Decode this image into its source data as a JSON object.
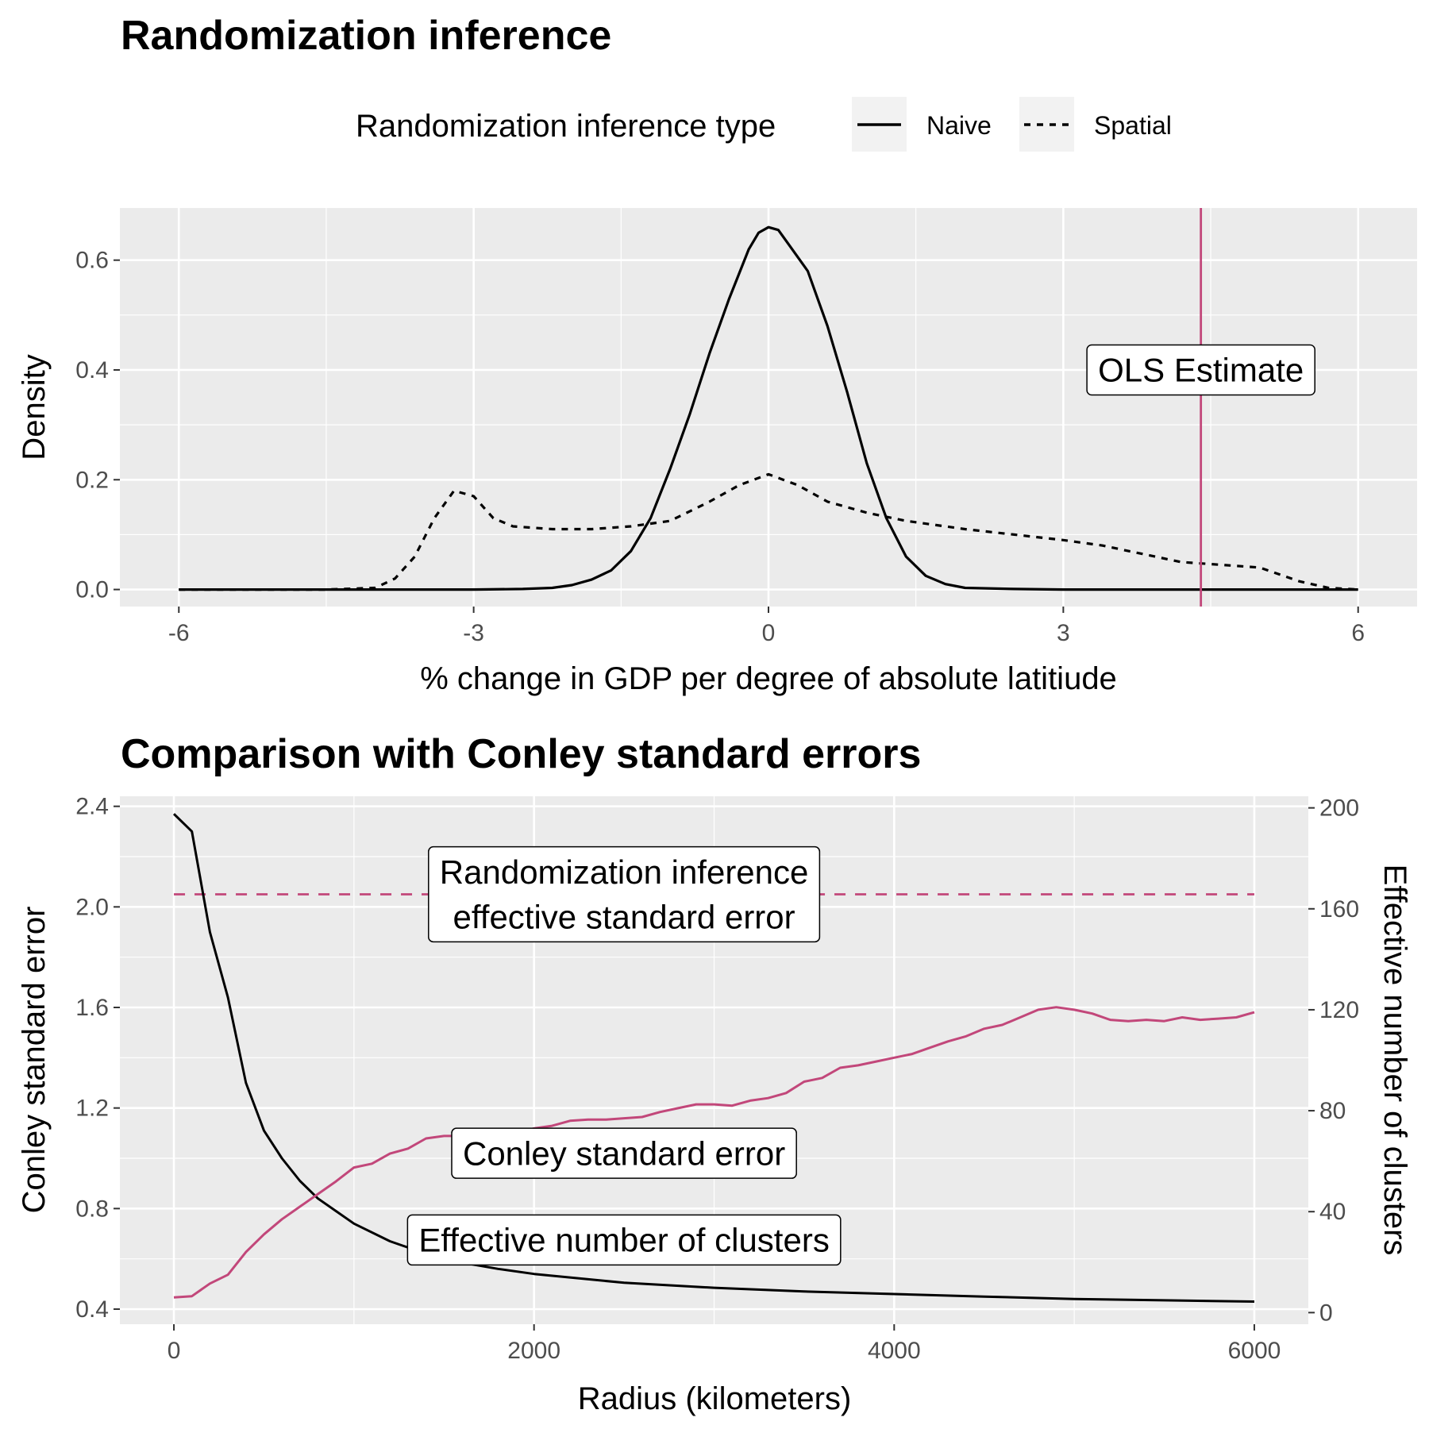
{
  "chart_data": [
    {
      "type": "line",
      "title": "Randomization inference",
      "xlabel": "% change in GDP per degree of absolute latitiude",
      "ylabel": "Density",
      "xlim": [
        -6.6,
        6.6
      ],
      "ylim": [
        -0.031,
        0.695
      ],
      "xticks": [
        -6,
        -3,
        0,
        3,
        6
      ],
      "xtick_labels": [
        "-6",
        "-3",
        "0",
        "3",
        "6"
      ],
      "yticks": [
        0.0,
        0.2,
        0.4,
        0.6
      ],
      "ytick_labels": [
        "0.0",
        "0.2",
        "0.4",
        "0.6"
      ],
      "grid": true,
      "legend": {
        "position": "top",
        "title": "Randomization inference type",
        "entries": [
          "Naive",
          "Spatial"
        ]
      },
      "series": [
        {
          "name": "Naive",
          "style": "solid",
          "color": "#000000",
          "x": [
            -6,
            -4,
            -3,
            -2.5,
            -2.2,
            -2,
            -1.8,
            -1.6,
            -1.4,
            -1.2,
            -1,
            -0.8,
            -0.6,
            -0.4,
            -0.2,
            -0.1,
            0,
            0.1,
            0.2,
            0.4,
            0.6,
            0.8,
            1,
            1.2,
            1.4,
            1.6,
            1.8,
            2,
            2.5,
            3,
            4,
            5,
            6
          ],
          "y": [
            0,
            0,
            0,
            0.001,
            0.003,
            0.008,
            0.018,
            0.035,
            0.07,
            0.13,
            0.22,
            0.32,
            0.43,
            0.53,
            0.62,
            0.65,
            0.66,
            0.655,
            0.63,
            0.58,
            0.48,
            0.36,
            0.23,
            0.13,
            0.06,
            0.025,
            0.01,
            0.003,
            0.001,
            0,
            0,
            0,
            0
          ]
        },
        {
          "name": "Spatial",
          "style": "dashed",
          "color": "#000000",
          "x": [
            -6,
            -4.5,
            -4,
            -3.8,
            -3.6,
            -3.4,
            -3.2,
            -3,
            -2.8,
            -2.6,
            -2.2,
            -1.8,
            -1.4,
            -1,
            -0.6,
            -0.3,
            0,
            0.3,
            0.6,
            1,
            1.4,
            2,
            2.5,
            3,
            3.4,
            3.8,
            4.2,
            4.6,
            5,
            5.4,
            5.7,
            6
          ],
          "y": [
            0,
            0,
            0.003,
            0.02,
            0.06,
            0.13,
            0.18,
            0.17,
            0.13,
            0.115,
            0.11,
            0.11,
            0.115,
            0.125,
            0.16,
            0.19,
            0.21,
            0.19,
            0.16,
            0.14,
            0.125,
            0.11,
            0.1,
            0.09,
            0.08,
            0.065,
            0.05,
            0.045,
            0.04,
            0.015,
            0.003,
            0
          ]
        }
      ],
      "vline": {
        "x": 4.4,
        "color": "#c2477a"
      },
      "annotations": [
        {
          "text": "OLS Estimate",
          "x": 4.4,
          "y": 0.4
        }
      ]
    },
    {
      "type": "line",
      "title": "Comparison with Conley standard errors",
      "xlabel": "Radius (kilometers)",
      "ylabel": "Conley standard error",
      "ylabel_right": "Effective number of clusters",
      "xlim": [
        -300,
        6300
      ],
      "ylim": [
        0.34,
        2.44
      ],
      "ylim_right": [
        -4.6,
        204.6
      ],
      "xticks": [
        0,
        2000,
        4000,
        6000
      ],
      "xtick_labels": [
        "0",
        "2000",
        "4000",
        "6000"
      ],
      "yticks": [
        0.4,
        0.8,
        1.2,
        1.6,
        2.0,
        2.4
      ],
      "ytick_labels": [
        "0.4",
        "0.8",
        "1.2",
        "1.6",
        "2.0",
        "2.4"
      ],
      "yticks_right": [
        0,
        40,
        80,
        120,
        160,
        200
      ],
      "ytick_labels_right": [
        "0",
        "40",
        "80",
        "120",
        "160",
        "200"
      ],
      "grid": true,
      "series": [
        {
          "name": "Conley standard error",
          "axis": "left",
          "style": "solid",
          "color": "#000000",
          "x": [
            0,
            100,
            200,
            300,
            400,
            500,
            600,
            700,
            800,
            900,
            1000,
            1200,
            1400,
            1600,
            1800,
            2000,
            2500,
            3000,
            3500,
            4000,
            4500,
            5000,
            5500,
            6000
          ],
          "y": [
            2.37,
            2.3,
            1.9,
            1.64,
            1.3,
            1.11,
            1.0,
            0.91,
            0.84,
            0.79,
            0.74,
            0.67,
            0.62,
            0.585,
            0.56,
            0.54,
            0.505,
            0.485,
            0.47,
            0.46,
            0.45,
            0.44,
            0.435,
            0.43
          ]
        },
        {
          "name": "Effective number of clusters",
          "axis": "right",
          "style": "solid",
          "color": "#c2477a",
          "x": [
            0,
            100,
            200,
            300,
            400,
            500,
            600,
            700,
            800,
            900,
            1000,
            1100,
            1200,
            1300,
            1400,
            1500,
            1600,
            1700,
            1800,
            1900,
            2000,
            2100,
            2200,
            2300,
            2400,
            2500,
            2600,
            2700,
            2800,
            2900,
            3000,
            3100,
            3200,
            3300,
            3400,
            3500,
            3600,
            3700,
            3800,
            3900,
            4000,
            4100,
            4200,
            4300,
            4400,
            4500,
            4600,
            4700,
            4800,
            4900,
            5000,
            5100,
            5200,
            5300,
            5400,
            5500,
            5600,
            5700,
            5800,
            5900,
            6000
          ],
          "y": [
            6,
            6.5,
            11.5,
            15,
            24,
            31,
            37,
            42,
            47,
            52,
            57.5,
            59,
            63,
            65,
            69,
            70,
            70,
            70.5,
            71.5,
            71,
            73,
            74,
            76,
            76.5,
            76.5,
            77,
            77.5,
            79.5,
            81,
            82.5,
            82.5,
            82,
            84,
            85,
            87,
            91.5,
            93,
            97,
            98,
            99.5,
            101,
            102.5,
            105,
            107.5,
            109.5,
            112.5,
            114,
            117,
            120,
            121,
            120,
            118.5,
            116,
            115.5,
            116,
            115.5,
            117,
            116,
            116.5,
            117,
            119
          ]
        }
      ],
      "hline": {
        "y": 2.05,
        "style": "dashed",
        "color": "#c2477a"
      },
      "annotations": [
        {
          "text": [
            "Randomization inference",
            "effective standard error"
          ],
          "x": 2500,
          "y": 2.05
        },
        {
          "text": "Conley standard error",
          "x": 2500,
          "y": 1.02
        },
        {
          "text": "Effective number of clusters",
          "x": 2500,
          "y": 0.675
        }
      ]
    }
  ]
}
